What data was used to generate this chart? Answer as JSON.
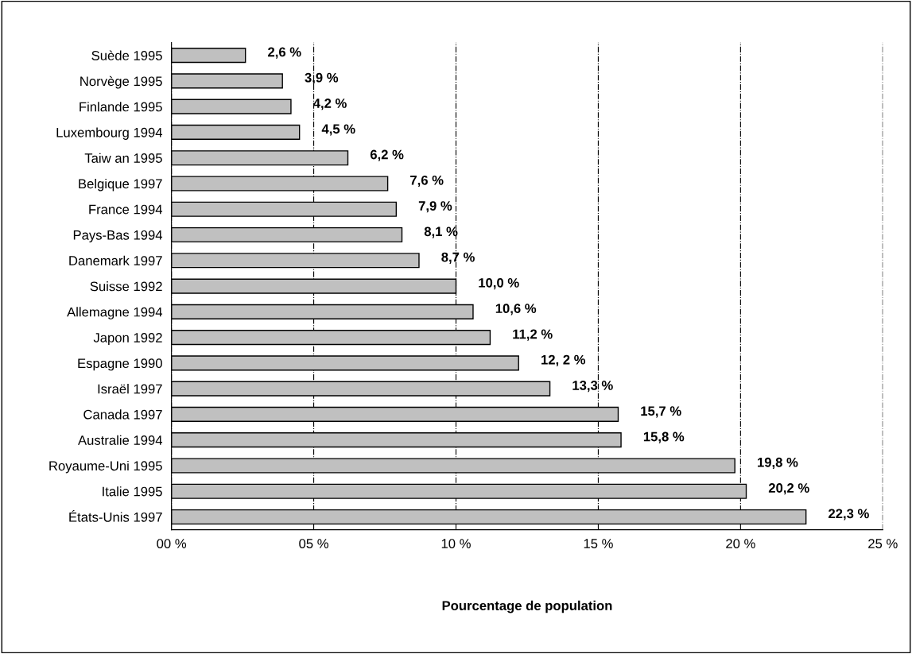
{
  "chart_data": {
    "type": "bar",
    "orientation": "horizontal",
    "xlabel": "Pourcentage de population",
    "categories": [
      "Suède 1995",
      "Norvège 1995",
      "Finlande 1995",
      "Luxembourg 1994",
      "Taiw an 1995",
      "Belgique 1997",
      "France 1994",
      "Pays-Bas 1994",
      "Danemark 1997",
      "Suisse 1992",
      "Allemagne 1994",
      "Japon 1992",
      "Espagne 1990",
      "Israël 1997",
      "Canada 1997",
      "Australie 1994",
      "Royaume-Uni 1995",
      "Italie 1995",
      "États-Unis 1997"
    ],
    "values": [
      2.6,
      3.9,
      4.2,
      4.5,
      6.2,
      7.6,
      7.9,
      8.1,
      8.7,
      10.0,
      10.6,
      11.2,
      12.2,
      13.3,
      15.7,
      15.8,
      19.8,
      20.2,
      22.3
    ],
    "value_labels": [
      "2,6 %",
      "3,9 %",
      "4,2 %",
      "4,5 %",
      "6,2 %",
      "7,6 %",
      "7,9 %",
      "8,1 %",
      "8,7 %",
      "10,0 %",
      "10,6 %",
      "11,2 %",
      "12, 2 %",
      "13,3 %",
      "15,7 %",
      "15,8 %",
      "19,8 %",
      "20,2 %",
      "22,3 %"
    ],
    "color": "#c0c0c0",
    "xlim": [
      0,
      25
    ],
    "xticks": [
      {
        "value": 0,
        "label": "00 %"
      },
      {
        "value": 5,
        "label": "05 %"
      },
      {
        "value": 10,
        "label": "10 %"
      },
      {
        "value": 15,
        "label": "15 %"
      },
      {
        "value": 20,
        "label": "20 %"
      },
      {
        "value": 25,
        "label": "25 %"
      }
    ],
    "grid": "x",
    "legend": false
  }
}
